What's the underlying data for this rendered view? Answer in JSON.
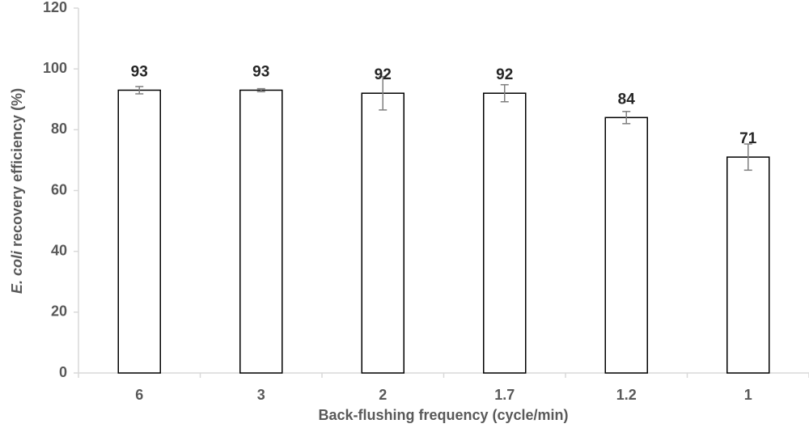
{
  "chart_data": {
    "type": "bar",
    "ylabel": [
      "E. coli",
      "recovery efficiency (%)"
    ],
    "xlabel": "Back-flushing frequency (cycle/min)",
    "categories": [
      "6",
      "3",
      "2",
      "1.7",
      "1.2",
      "1"
    ],
    "values": [
      93,
      93,
      92,
      92,
      84,
      71
    ],
    "errors": [
      1.2,
      0.5,
      5.5,
      2.8,
      2,
      4.3
    ],
    "color": "#ffffff",
    "edgecolor": "#000000",
    "errorcolor": "#7f7f7f",
    "ylim": [
      0,
      120
    ],
    "yticks": [
      0,
      20,
      40,
      60,
      80,
      100,
      120
    ],
    "grid": false
  }
}
